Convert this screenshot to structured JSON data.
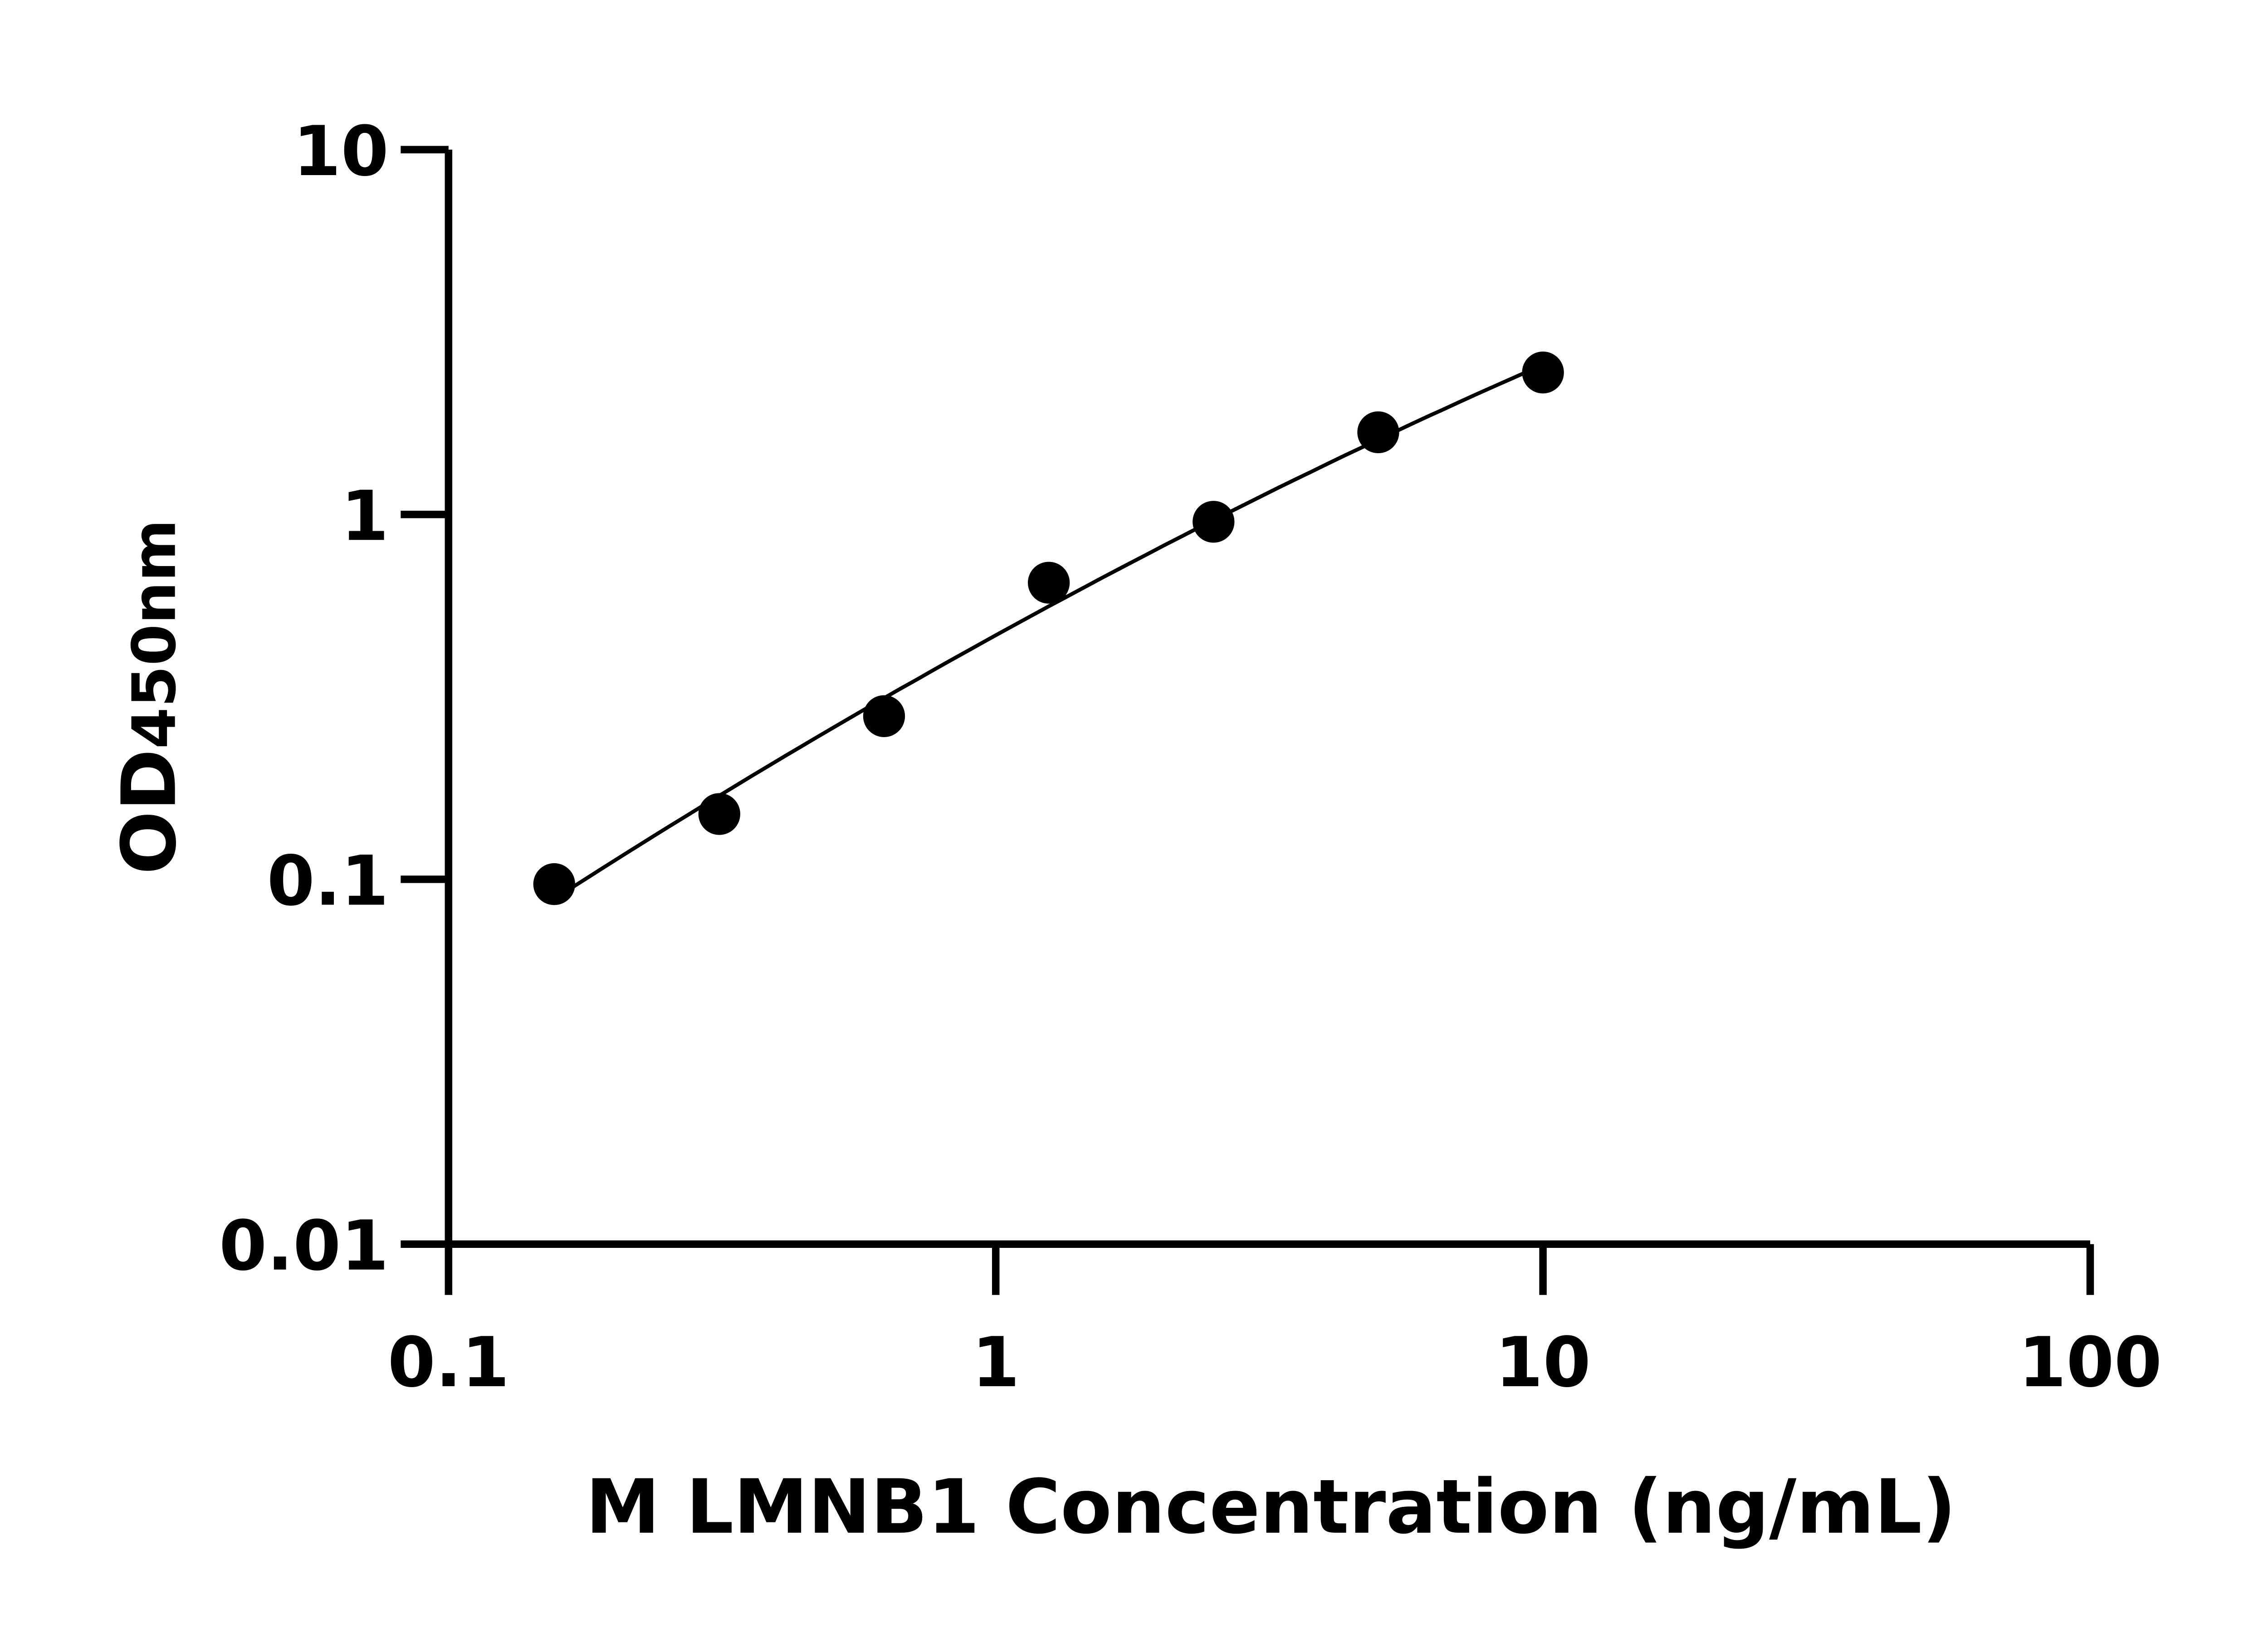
{
  "chart_data": {
    "type": "scatter",
    "title": "",
    "xlabel": "M LMNB1 Concentration (ng/mL)",
    "ylabel": {
      "main": "OD",
      "sub": "450nm"
    },
    "x_scale": "log",
    "y_scale": "log",
    "xlim": [
      0.1,
      100
    ],
    "ylim": [
      0.01,
      10
    ],
    "x_ticks": [
      "0.1",
      "1",
      "10",
      "100"
    ],
    "y_ticks": [
      "0.01",
      "0.1",
      "1",
      "10"
    ],
    "grid": false,
    "series": [
      {
        "x": [
          0.156,
          0.3125,
          0.625,
          1.25,
          2.5,
          5,
          10
        ],
        "y": [
          0.097,
          0.151,
          0.28,
          0.65,
          0.955,
          1.68,
          2.45
        ],
        "marker": "circle",
        "fit_line": true
      }
    ],
    "colors": {
      "points": "#000000",
      "axes": "#000000"
    }
  }
}
